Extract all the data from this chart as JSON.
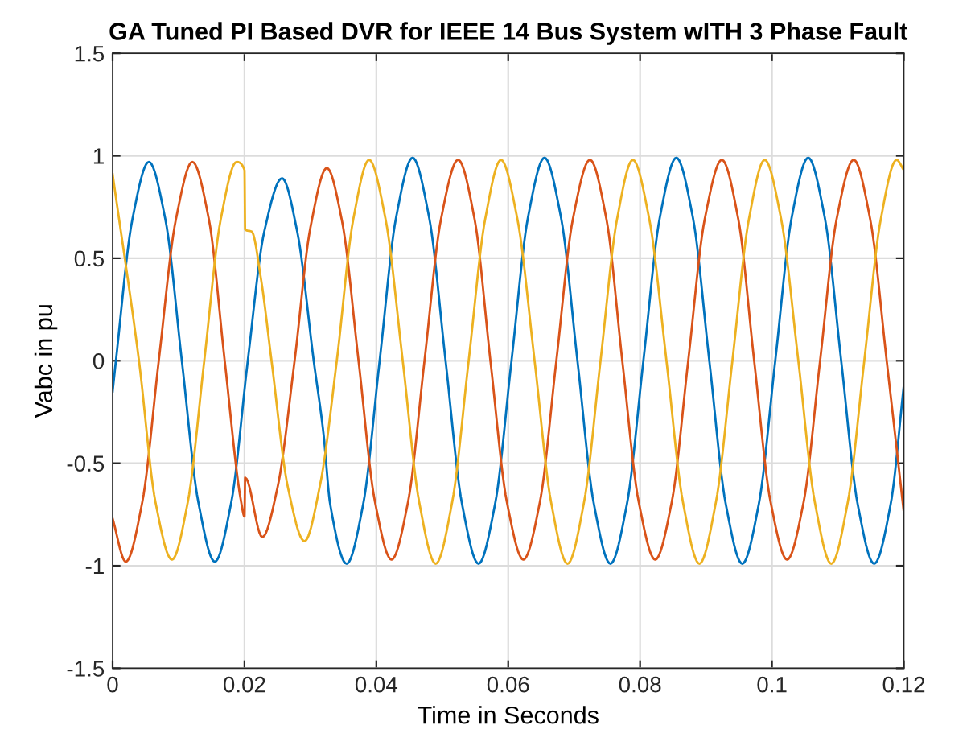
{
  "chart_data": {
    "type": "line",
    "title": "GA Tuned PI Based DVR for IEEE 14 Bus System wITH 3 Phase Fault",
    "xlabel": "Time in Seconds",
    "ylabel": "Vabc in pu",
    "xlim": [
      0,
      0.12
    ],
    "ylim": [
      -1.5,
      1.5
    ],
    "xticks": [
      0,
      0.02,
      0.04,
      0.06,
      0.08,
      0.1,
      0.12
    ],
    "yticks": [
      -1.5,
      -1,
      -0.5,
      0,
      0.5,
      1,
      1.5
    ],
    "grid": true,
    "marker": "none",
    "line_style": "solid",
    "series": [
      {
        "color": "#0072bd",
        "x": [
          0,
          0.0005,
          0.003,
          0.0055,
          0.008,
          0.0105,
          0.013,
          0.0155,
          0.018,
          0.0205,
          0.023,
          0.0257,
          0.028,
          0.0305,
          0.032,
          0.033,
          0.0355,
          0.038,
          0.0405,
          0.043,
          0.0455,
          0.048,
          0.0505,
          0.053,
          0.0555,
          0.058,
          0.0605,
          0.063,
          0.0655,
          0.068,
          0.0705,
          0.073,
          0.0755,
          0.078,
          0.0805,
          0.083,
          0.0855,
          0.088,
          0.0905,
          0.093,
          0.0955,
          0.098,
          0.1005,
          0.103,
          0.1055,
          0.108,
          0.1105,
          0.113,
          0.1155,
          0.118,
          0.12
        ],
        "values": [
          -0.15,
          0,
          0.69,
          0.97,
          0.69,
          0,
          -0.69,
          -0.98,
          -0.69,
          0,
          0.63,
          0.89,
          0.63,
          0,
          -0.36,
          -0.7,
          -0.99,
          -0.7,
          0,
          0.7,
          0.99,
          0.7,
          0,
          -0.7,
          -0.99,
          -0.7,
          0,
          0.7,
          0.99,
          0.7,
          0,
          -0.7,
          -0.99,
          -0.7,
          0,
          0.7,
          0.99,
          0.7,
          0,
          -0.7,
          -0.99,
          -0.7,
          0,
          0.7,
          0.99,
          0.7,
          0,
          -0.7,
          -0.99,
          -0.7,
          -0.12
        ]
      },
      {
        "color": "#d95319",
        "x": [
          0,
          0.002,
          0.0045,
          0.007,
          0.0096,
          0.0121,
          0.0146,
          0.017,
          0.0195,
          0.02,
          0.0201,
          0.0227,
          0.025,
          0.0276,
          0.03,
          0.0325,
          0.0348,
          0.0373,
          0.0398,
          0.0423,
          0.0448,
          0.0473,
          0.0498,
          0.0524,
          0.0549,
          0.0573,
          0.0598,
          0.0623,
          0.0648,
          0.0673,
          0.0698,
          0.0724,
          0.0749,
          0.0773,
          0.0798,
          0.0823,
          0.0848,
          0.0873,
          0.0898,
          0.0924,
          0.0949,
          0.0973,
          0.0998,
          0.1023,
          0.1048,
          0.1073,
          0.1098,
          0.1124,
          0.1149,
          0.1174,
          0.12
        ],
        "values": [
          -0.77,
          -0.98,
          -0.69,
          0,
          0.69,
          0.97,
          0.69,
          0,
          -0.69,
          -0.76,
          -0.57,
          -0.86,
          -0.62,
          0,
          0.65,
          0.94,
          0.68,
          0,
          -0.69,
          -0.97,
          -0.69,
          0,
          0.69,
          0.98,
          0.69,
          0,
          -0.69,
          -0.97,
          -0.69,
          0,
          0.69,
          0.98,
          0.69,
          0,
          -0.69,
          -0.97,
          -0.69,
          0,
          0.69,
          0.98,
          0.69,
          0,
          -0.69,
          -0.97,
          -0.69,
          0,
          0.69,
          0.98,
          0.69,
          0,
          -0.74
        ]
      },
      {
        "color": "#edb120",
        "x": [
          0,
          0.004,
          0.0065,
          0.009,
          0.0114,
          0.0139,
          0.0164,
          0.0188,
          0.02,
          0.0201,
          0.0211,
          0.0225,
          0.0241,
          0.0266,
          0.0291,
          0.0315,
          0.034,
          0.0365,
          0.0389,
          0.0414,
          0.044,
          0.0465,
          0.049,
          0.0515,
          0.054,
          0.0565,
          0.0589,
          0.0614,
          0.064,
          0.0665,
          0.069,
          0.0715,
          0.074,
          0.0765,
          0.0789,
          0.0814,
          0.084,
          0.0865,
          0.089,
          0.0915,
          0.094,
          0.0965,
          0.0989,
          0.1014,
          0.104,
          0.1065,
          0.109,
          0.1115,
          0.114,
          0.1165,
          0.1189,
          0.12
        ],
        "values": [
          0.91,
          0,
          -0.69,
          -0.97,
          -0.69,
          0,
          0.69,
          0.97,
          0.93,
          0.64,
          0.63,
          0.4,
          0,
          -0.62,
          -0.88,
          -0.6,
          0,
          0.69,
          0.98,
          0.69,
          0,
          -0.69,
          -0.99,
          -0.69,
          0,
          0.69,
          0.98,
          0.69,
          0,
          -0.69,
          -0.99,
          -0.69,
          0,
          0.69,
          0.98,
          0.69,
          0,
          -0.69,
          -0.99,
          -0.69,
          0,
          0.69,
          0.98,
          0.69,
          0,
          -0.69,
          -0.99,
          -0.69,
          0,
          0.69,
          0.98,
          0.93
        ]
      }
    ]
  }
}
